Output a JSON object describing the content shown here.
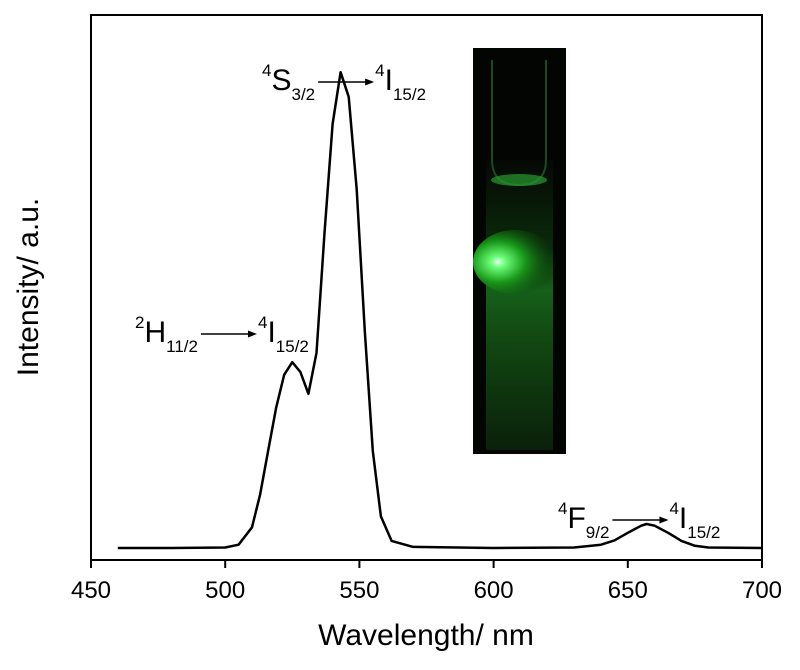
{
  "chart_data": {
    "type": "line",
    "x_label": "Wavelength/ nm",
    "y_label": "Intensity/ a.u.",
    "xlim": [
      450,
      700
    ],
    "xticks": [
      450,
      500,
      550,
      600,
      650,
      700
    ],
    "ylim": [
      0,
      1
    ],
    "series": [
      {
        "color": "#000000",
        "x": [
          460,
          480,
          500,
          505,
          510,
          513,
          516,
          519,
          522,
          525,
          528,
          531,
          534,
          537,
          540,
          543,
          546,
          549,
          552,
          555,
          558,
          562,
          570,
          600,
          630,
          640,
          645,
          650,
          655,
          657,
          660,
          665,
          670,
          675,
          680,
          700
        ],
        "values": [
          0.022,
          0.022,
          0.023,
          0.028,
          0.06,
          0.12,
          0.2,
          0.28,
          0.34,
          0.363,
          0.345,
          0.305,
          0.38,
          0.6,
          0.8,
          0.895,
          0.85,
          0.68,
          0.42,
          0.2,
          0.08,
          0.035,
          0.024,
          0.022,
          0.023,
          0.028,
          0.036,
          0.05,
          0.063,
          0.066,
          0.063,
          0.05,
          0.035,
          0.026,
          0.023,
          0.022
        ]
      }
    ],
    "annotations": [
      {
        "from": {
          "sup": "2",
          "term": "H",
          "sub": "11/2"
        },
        "to": {
          "sup": "4",
          "term": "I",
          "sub": "15/2"
        }
      },
      {
        "from": {
          "sup": "4",
          "term": "S",
          "sub": "3/2"
        },
        "to": {
          "sup": "4",
          "term": "I",
          "sub": "15/2"
        }
      },
      {
        "from": {
          "sup": "4",
          "term": "F",
          "sub": "9/2"
        },
        "to": {
          "sup": "4",
          "term": "I",
          "sub": "15/2"
        }
      }
    ]
  }
}
